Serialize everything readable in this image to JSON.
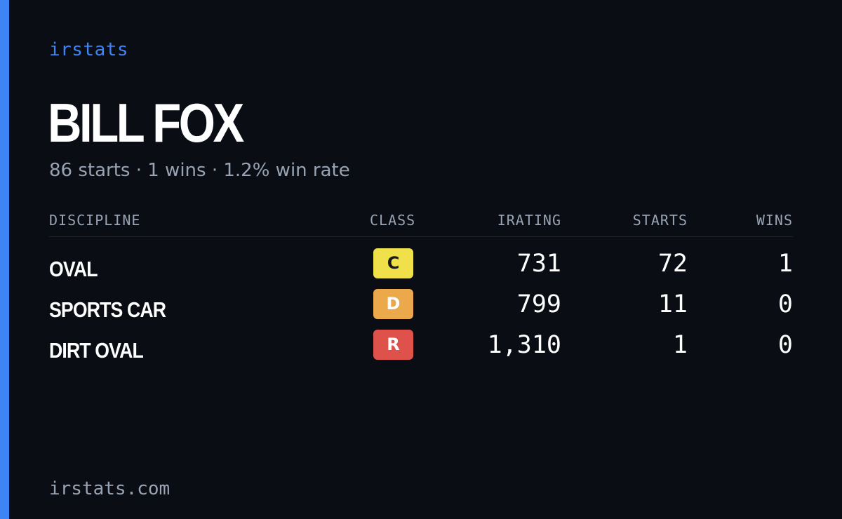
{
  "brand": "irstats",
  "driver": {
    "name": "BILL FOX",
    "summary": "86 starts · 1 wins · 1.2% win rate"
  },
  "table": {
    "headers": {
      "discipline": "DISCIPLINE",
      "class": "CLASS",
      "irating": "IRATING",
      "starts": "STARTS",
      "wins": "WINS"
    },
    "rows": [
      {
        "discipline": "OVAL",
        "class": "C",
        "class_color": "#f0e14a",
        "class_text_color": "#1a1a1a",
        "irating": "731",
        "starts": "72",
        "wins": "1"
      },
      {
        "discipline": "SPORTS CAR",
        "class": "D",
        "class_color": "#eca94c",
        "class_text_color": "#ffffff",
        "irating": "799",
        "starts": "11",
        "wins": "0"
      },
      {
        "discipline": "DIRT OVAL",
        "class": "R",
        "class_color": "#de524b",
        "class_text_color": "#ffffff",
        "irating": "1,310",
        "starts": "1",
        "wins": "0"
      }
    ]
  },
  "footer": "irstats.com",
  "colors": {
    "background": "#0a0d14",
    "accent": "#3d84f5",
    "muted": "#98a3b3"
  }
}
